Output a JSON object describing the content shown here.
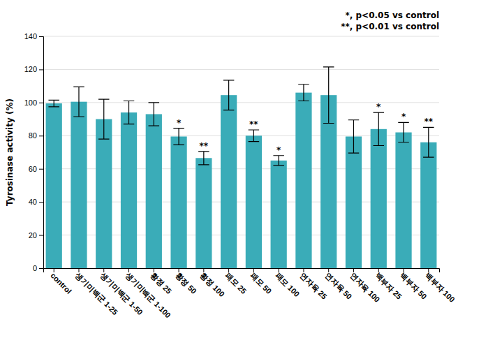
{
  "chart_data": {
    "type": "bar",
    "categories": [
      "control",
      "생기미백군 1-25",
      "생기미백군 1-50",
      "생기미백군 1-100",
      "황정 25",
      "황정 50",
      "황정 100",
      "패모 25",
      "패모 50",
      "패모 100",
      "연자육 25",
      "연자육 50",
      "연자육 100",
      "백부자 25",
      "백부자 50",
      "백부자 100"
    ],
    "values": [
      99.5,
      100.5,
      90.0,
      94.0,
      93.0,
      79.5,
      66.5,
      104.5,
      80.0,
      65.0,
      106.0,
      104.5,
      79.5,
      84.0,
      82.0,
      76.0
    ],
    "errors": [
      2.0,
      9.0,
      12.0,
      7.0,
      7.0,
      5.0,
      4.0,
      9.0,
      3.5,
      3.0,
      5.0,
      17.0,
      10.0,
      10.0,
      6.0,
      9.0
    ],
    "significance": [
      {
        "category": "황정 50",
        "label": "*"
      },
      {
        "category": "황정 100",
        "label": "**"
      },
      {
        "category": "패모 50",
        "label": "**"
      },
      {
        "category": "패모 100",
        "label": "*"
      },
      {
        "category": "백부자 25",
        "label": "*"
      },
      {
        "category": "백부자 50",
        "label": "*"
      },
      {
        "category": "백부자 100",
        "label": "**"
      }
    ],
    "color": "#3aacb8",
    "ylabel": "Tyrosinase activity (%)",
    "ylim": [
      0,
      140
    ],
    "yticks": [
      0,
      20,
      40,
      60,
      80,
      100,
      120,
      140
    ],
    "grid": true,
    "annotations": [
      "*, p<0.05 vs control",
      "**, p<0.01 vs control"
    ]
  }
}
